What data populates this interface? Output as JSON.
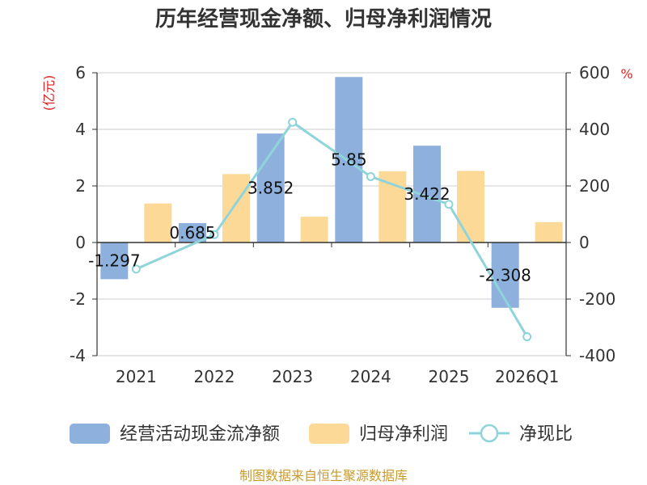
{
  "chart_data": {
    "type": "bar+line",
    "title": "历年经营现金净额、归母净利润情况",
    "categories": [
      "2021",
      "2022",
      "2023",
      "2024",
      "2025",
      "2026Q1"
    ],
    "series": [
      {
        "name": "经营活动现金流净额",
        "type": "bar",
        "axis": "left",
        "values": [
          -1.297,
          0.685,
          3.852,
          5.85,
          3.422,
          -2.308
        ],
        "labels": [
          "-1.297",
          "0.685",
          "3.852",
          "5.85",
          "3.422",
          "-2.308"
        ],
        "color": "#8eb0dd"
      },
      {
        "name": "归母净利润",
        "type": "bar",
        "axis": "left",
        "values": [
          1.38,
          2.42,
          0.91,
          2.52,
          2.53,
          0.72
        ],
        "color": "#fdd998"
      },
      {
        "name": "净现比",
        "type": "line",
        "axis": "right",
        "values": [
          -94,
          28,
          425,
          233,
          135,
          -333
        ],
        "color": "#8fd4db"
      }
    ],
    "left_axis": {
      "unit_label": "(亿元)",
      "range": [
        -4,
        6
      ],
      "ticks": [
        6,
        4,
        2,
        0,
        -2,
        -4
      ],
      "tick_labels": [
        "6",
        "4",
        "2",
        "0",
        "-2",
        "-4"
      ]
    },
    "right_axis": {
      "unit_label": "%",
      "range": [
        -400,
        600
      ],
      "ticks": [
        600,
        400,
        200,
        0,
        -200,
        -400
      ],
      "tick_labels": [
        "600",
        "400",
        "200",
        "0",
        "-200",
        "-400"
      ]
    },
    "grid": true,
    "legend_position": "bottom"
  },
  "source": "制图数据来自恒生聚源数据库",
  "colors": {
    "grid": "#cccccc",
    "axis": "#333333",
    "accent_red": "#e02020",
    "source_text": "#c89a2c"
  }
}
